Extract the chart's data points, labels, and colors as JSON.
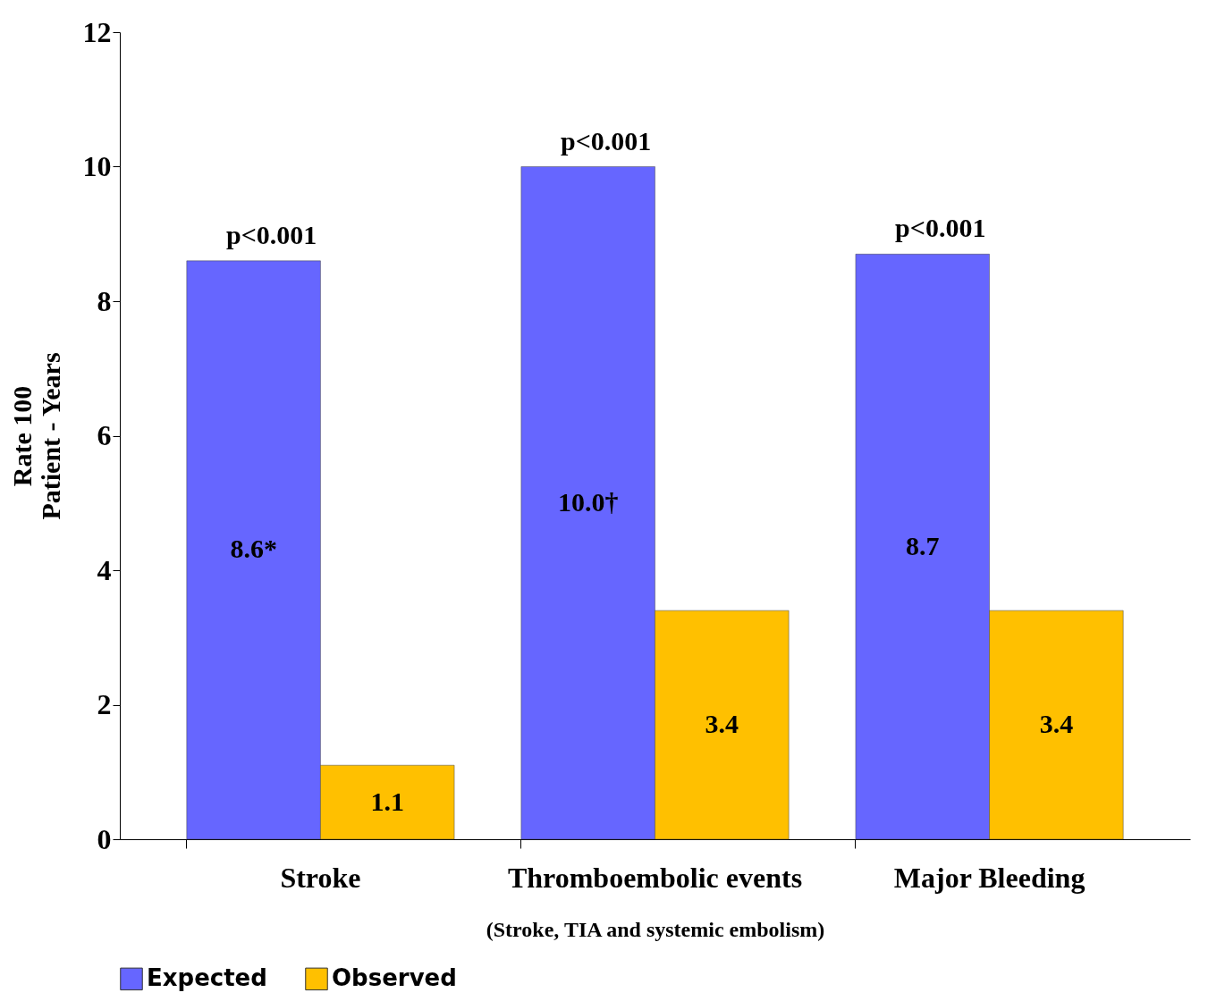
{
  "chart_data": {
    "type": "bar",
    "categories": [
      "Stroke",
      "Thromboembolic events",
      "Major Bleeding"
    ],
    "xlabel": "(Stroke, TIA and systemic embolism)",
    "ylabel": "Rate 100\nPatient - Years",
    "series": [
      {
        "name": "Expected",
        "color": "#6666ff",
        "values": [
          8.6,
          10.0,
          8.7
        ],
        "value_labels": [
          "8.6*",
          "10.0†",
          "8.7"
        ]
      },
      {
        "name": "Observed",
        "color": "#ffc000",
        "values": [
          1.1,
          3.4,
          3.4
        ],
        "value_labels": [
          "1.1",
          "3.4",
          "3.4"
        ]
      }
    ],
    "annotations": [
      {
        "text": "p<0.001",
        "x": "Stroke",
        "y": 8.6
      },
      {
        "text": "p<0.001",
        "x": "Thromboembolic events",
        "y": 10.0
      },
      {
        "text": "p<0.001",
        "x": "Major Bleeding",
        "y": 8.7
      }
    ],
    "ylim": [
      0,
      12
    ],
    "yticks": [
      0,
      2,
      4,
      6,
      8,
      10,
      12
    ],
    "grid": false,
    "legend": "bottom"
  }
}
